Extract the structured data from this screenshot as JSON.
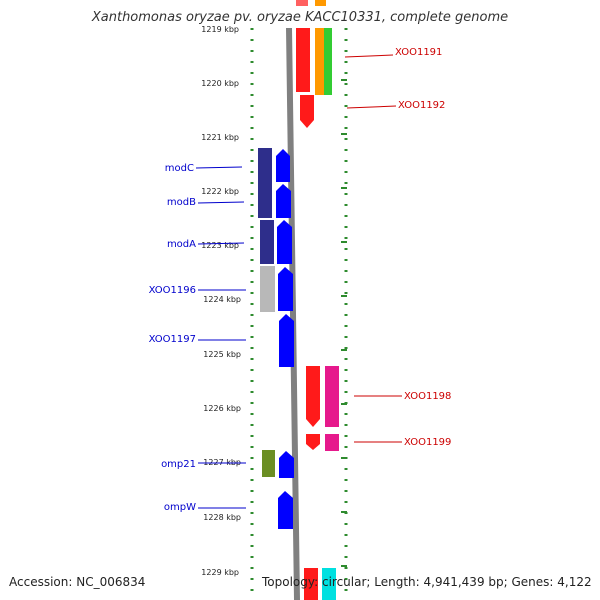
{
  "title": "Xanthomonas oryzae pv. oryzae KACC10331, complete genome",
  "footer": {
    "accession": "Accession: NC_006834",
    "info": "Topology: circular; Length: 4,941,439 bp; Genes: 4,122"
  },
  "ruler": {
    "ticks": [
      "1219 kbp",
      "1220 kbp",
      "1221 kbp",
      "1222 kbp",
      "1223 kbp",
      "1224 kbp",
      "1225 kbp",
      "1226 kbp",
      "1227 kbp",
      "1228 kbp",
      "1229 kbp"
    ]
  },
  "colors": {
    "forward_strand": "#0000ff",
    "reverse_strand": "#ff0000",
    "forward_label": "#0000cc",
    "reverse_label": "#cc0000",
    "backbone": "#808080",
    "ruler_dots": "#2e8b2e"
  },
  "genes_left": [
    "modC",
    "modB",
    "modA",
    "XOO1196",
    "XOO1197",
    "omp21",
    "ompW"
  ],
  "genes_right": [
    "XOO1191",
    "XOO1192",
    "XOO1198",
    "XOO1199"
  ]
}
